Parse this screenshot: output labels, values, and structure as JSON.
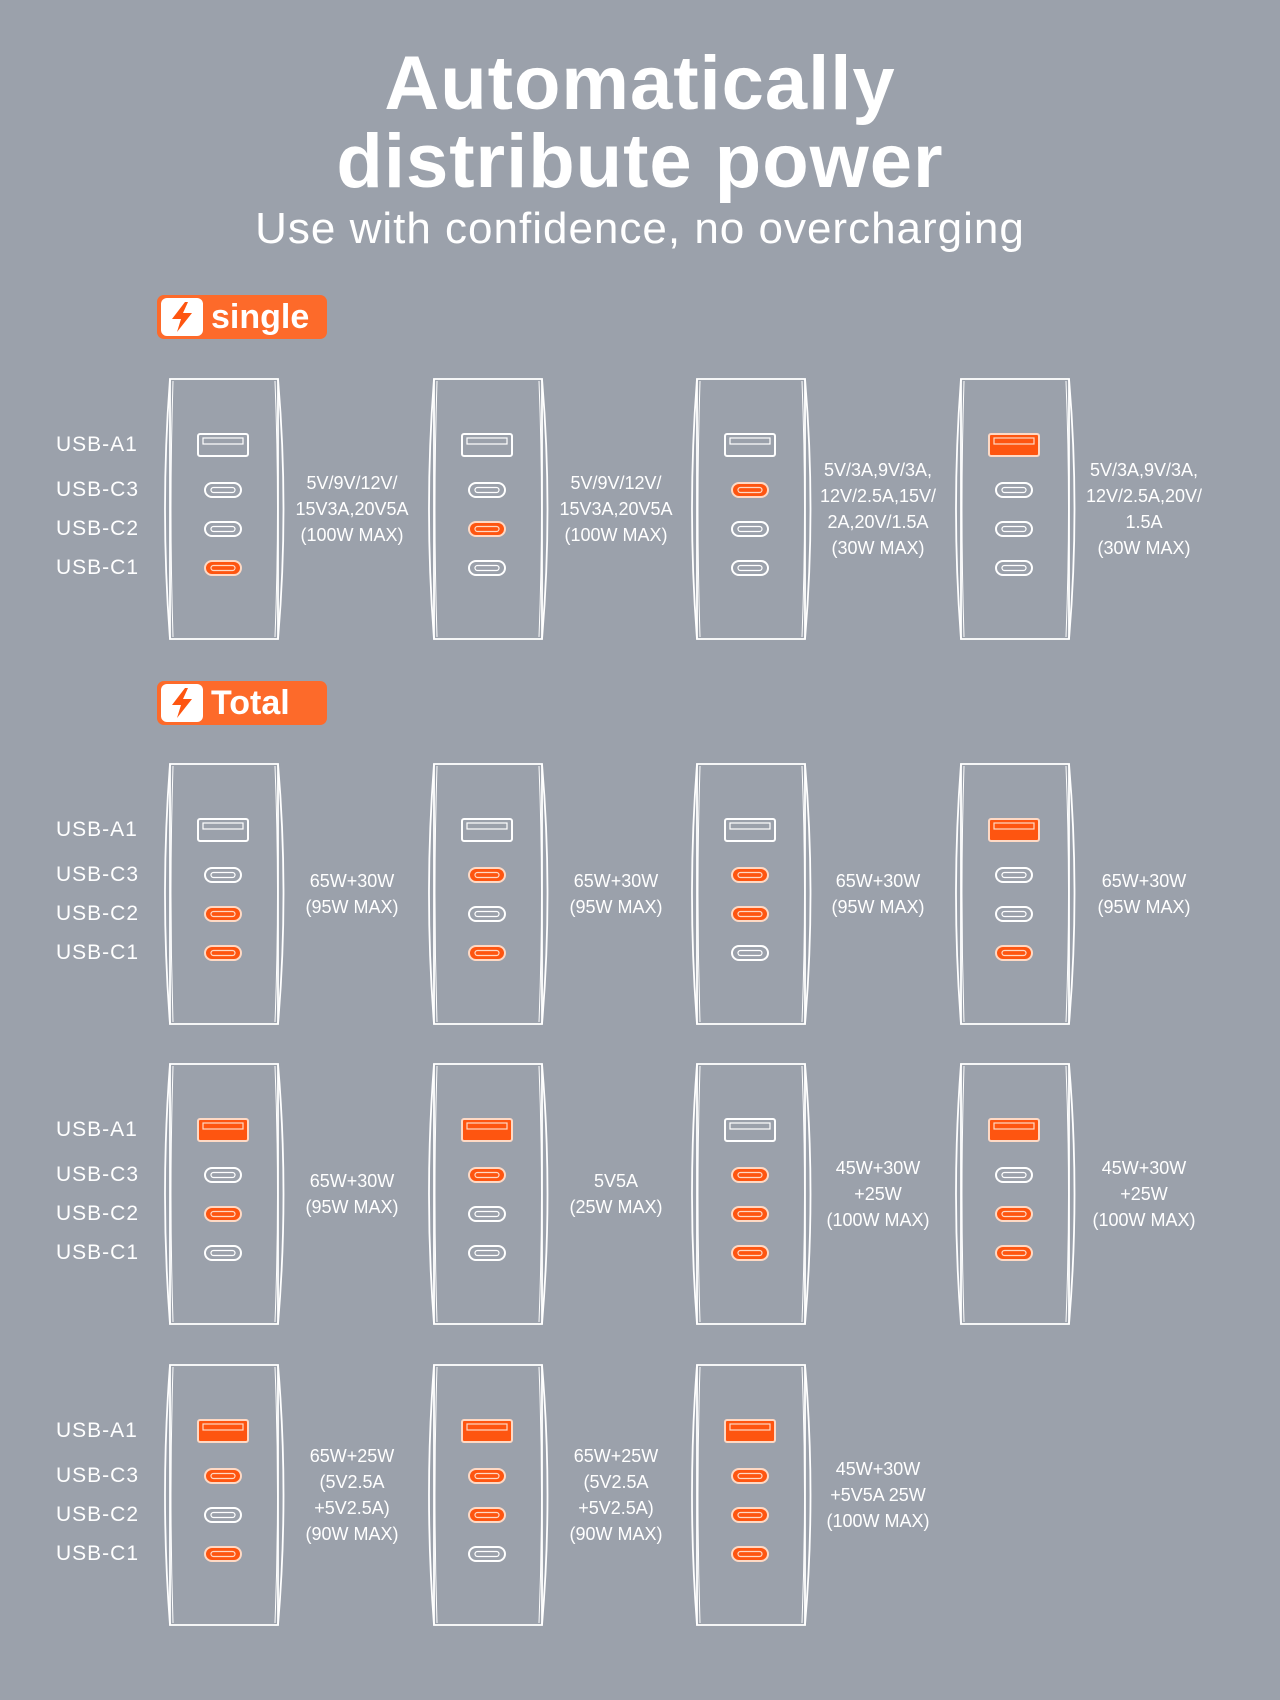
{
  "header": {
    "title_line1": "Automatically",
    "title_line2": "distribute power",
    "subtitle": "Use with confidence, no overcharging"
  },
  "colors": {
    "accent": "#fe5510",
    "background": "#9ba1ab",
    "outline": "#ffffff"
  },
  "port_labels": [
    "USB-A1",
    "USB-C3",
    "USB-C2",
    "USB-C1"
  ],
  "sections": [
    {
      "badge": "single",
      "icon": "lightning-icon",
      "rows": [
        [
          {
            "active": [
              "C1"
            ],
            "spec": [
              "5V/9V/12V/",
              "15V3A,20V5A",
              "(100W MAX)"
            ]
          },
          {
            "active": [
              "C2"
            ],
            "spec": [
              "5V/9V/12V/",
              "15V3A,20V5A",
              "(100W MAX)"
            ]
          },
          {
            "active": [
              "C3"
            ],
            "spec": [
              "5V/3A,9V/3A,",
              "12V/2.5A,15V/",
              "2A,20V/1.5A",
              "(30W MAX)"
            ]
          },
          {
            "active": [
              "A1"
            ],
            "spec": [
              "5V/3A,9V/3A,",
              "12V/2.5A,20V/",
              "1.5A",
              "(30W MAX)"
            ]
          }
        ]
      ]
    },
    {
      "badge": "Total",
      "icon": "lightning-icon",
      "rows": [
        [
          {
            "active": [
              "C2",
              "C1"
            ],
            "spec": [
              "65W+30W",
              "(95W MAX)"
            ]
          },
          {
            "active": [
              "C3",
              "C1"
            ],
            "spec": [
              "65W+30W",
              "(95W MAX)"
            ]
          },
          {
            "active": [
              "C3",
              "C2"
            ],
            "spec": [
              "65W+30W",
              "(95W MAX)"
            ]
          },
          {
            "active": [
              "A1",
              "C1"
            ],
            "spec": [
              "65W+30W",
              "(95W MAX)"
            ]
          }
        ],
        [
          {
            "active": [
              "A1",
              "C2"
            ],
            "spec": [
              "65W+30W",
              "(95W MAX)"
            ]
          },
          {
            "active": [
              "A1",
              "C3"
            ],
            "spec": [
              "5V5A",
              "(25W MAX)"
            ]
          },
          {
            "active": [
              "C3",
              "C2",
              "C1"
            ],
            "spec": [
              "45W+30W",
              "+25W",
              "(100W MAX)"
            ]
          },
          {
            "active": [
              "A1",
              "C2",
              "C1"
            ],
            "spec": [
              "45W+30W",
              "+25W",
              "(100W MAX)"
            ]
          }
        ],
        [
          {
            "active": [
              "A1",
              "C3",
              "C1"
            ],
            "spec": [
              "65W+25W",
              "(5V2.5A",
              "+5V2.5A)",
              "(90W MAX)"
            ]
          },
          {
            "active": [
              "A1",
              "C3",
              "C2"
            ],
            "spec": [
              "65W+25W",
              "(5V2.5A",
              "+5V2.5A)",
              "(90W MAX)"
            ]
          },
          {
            "active": [
              "A1",
              "C3",
              "C2",
              "C1"
            ],
            "spec": [
              "45W+30W",
              "+5V5A 25W",
              "(100W MAX)"
            ]
          }
        ]
      ]
    }
  ]
}
